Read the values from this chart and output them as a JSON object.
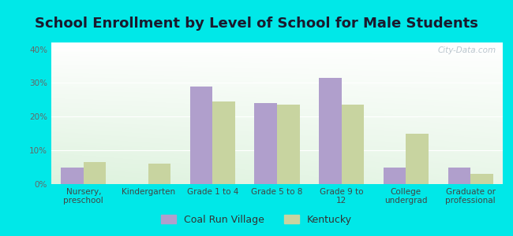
{
  "title": "School Enrollment by Level of School for Male Students",
  "categories": [
    "Nursery,\npreschool",
    "Kindergarten",
    "Grade 1 to 4",
    "Grade 5 to 8",
    "Grade 9 to\n12",
    "College\nundergrad",
    "Graduate or\nprofessional"
  ],
  "coal_run_values": [
    5.0,
    0.0,
    29.0,
    24.0,
    31.5,
    5.0,
    5.0
  ],
  "kentucky_values": [
    6.5,
    6.0,
    24.5,
    23.5,
    23.5,
    15.0,
    3.0
  ],
  "coal_run_color": "#b09fcc",
  "kentucky_color": "#c8d4a0",
  "background_color": "#00e8e8",
  "ylim": [
    0,
    42
  ],
  "yticks": [
    0,
    10,
    20,
    30,
    40
  ],
  "ytick_labels": [
    "0%",
    "10%",
    "20%",
    "30%",
    "40%"
  ],
  "legend_label_1": "Coal Run Village",
  "legend_label_2": "Kentucky",
  "bar_width": 0.35,
  "title_fontsize": 13,
  "tick_fontsize": 7.5,
  "legend_fontsize": 9,
  "watermark_text": "City-Data.com"
}
